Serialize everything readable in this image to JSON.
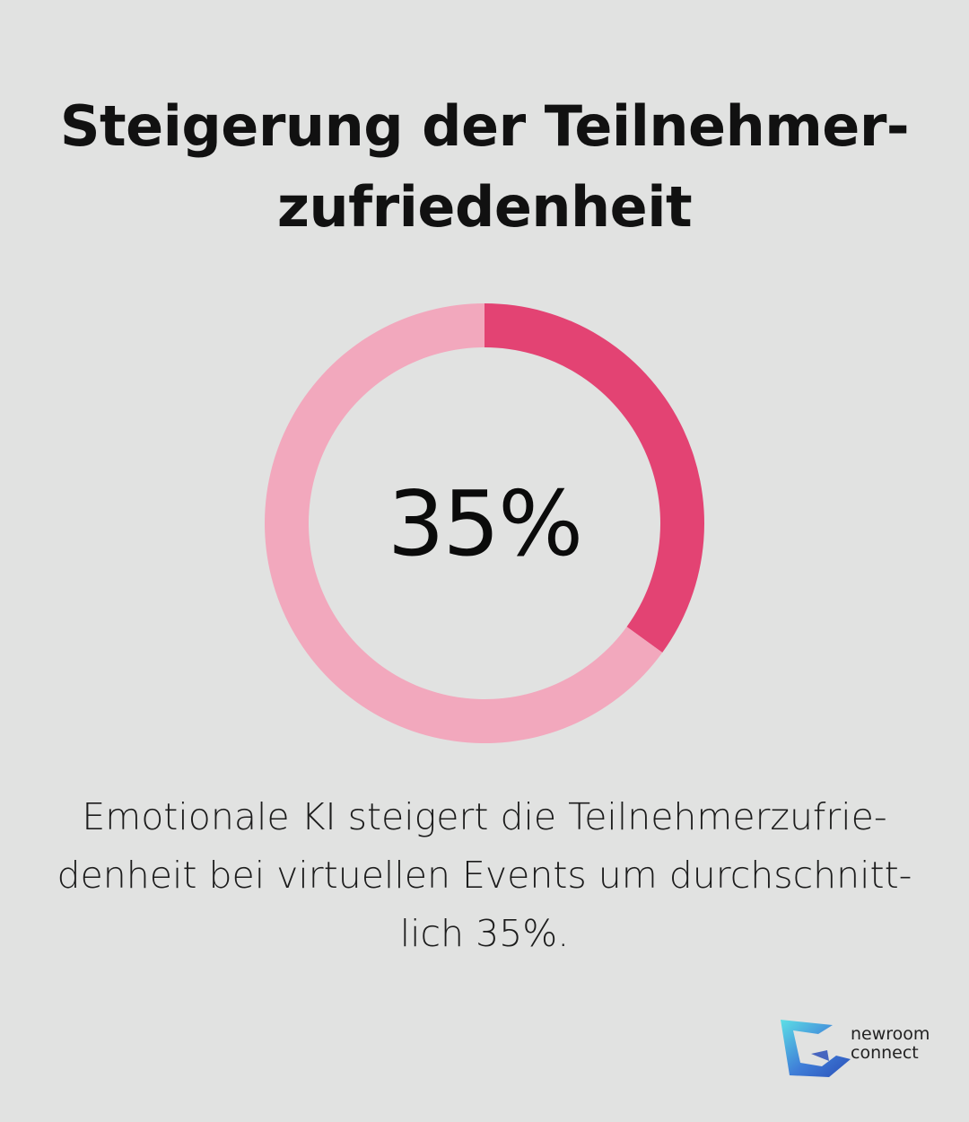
{
  "title_lines": [
    "Steigerung der Teilnehmer-",
    "zufriedenheit"
  ],
  "chart_data": {
    "type": "pie",
    "values": [
      35,
      65
    ],
    "center_label": "35%",
    "colors": [
      "#e34373",
      "#f2a8bd"
    ]
  },
  "caption_lines": [
    "Emotionale KI steigert die Teilnehmerzufrie-",
    "denheit bei virtuellen Events um durchschnitt-",
    "lich 35%."
  ],
  "brand": {
    "line1": "newroom",
    "line2": "connect",
    "logo_icon": "newroom-connect-logo-icon",
    "colors": [
      "#5de0e6",
      "#3f7ed8",
      "#2b4fb8"
    ]
  }
}
